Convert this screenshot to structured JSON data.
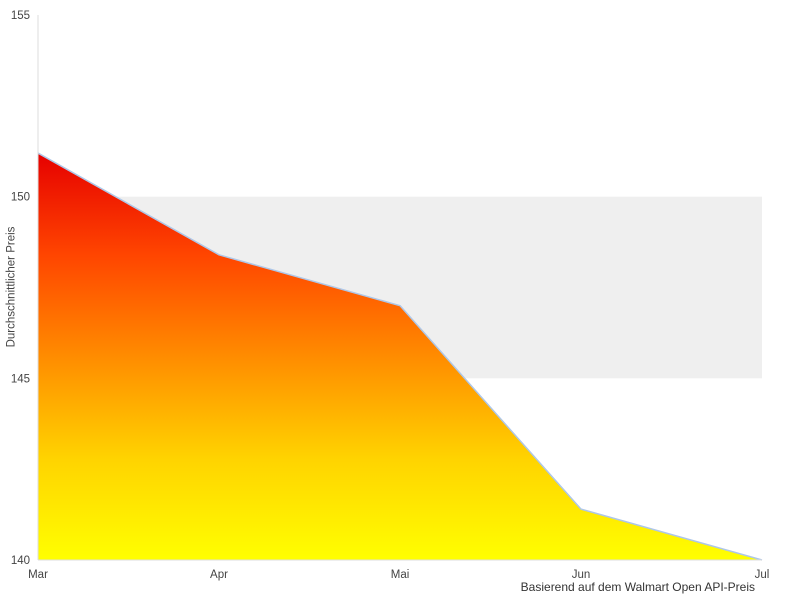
{
  "chart_data": {
    "type": "area",
    "categories": [
      "Mar",
      "Apr",
      "Mai",
      "Jun",
      "Jul"
    ],
    "values": [
      151.2,
      148.4,
      147.0,
      141.4,
      140.0
    ],
    "title": "",
    "xlabel": "",
    "ylabel": "Durchschnittlicher Preis",
    "caption": "Basierend auf dem Walmart Open API-Preis",
    "ylim": [
      140,
      155
    ],
    "yticks": [
      140,
      145,
      150,
      155
    ],
    "bands": [
      {
        "from": 145,
        "to": 150,
        "color": "#efefef"
      }
    ],
    "grid": false,
    "legend": "none",
    "colors": {
      "line": "#aec7e8",
      "gradient_stops": [
        "#e60000",
        "#ff4500",
        "#ff8c00",
        "#ffd300",
        "#ffff00"
      ],
      "axis_line": "#dddddd",
      "tick_text": "#444444"
    }
  }
}
